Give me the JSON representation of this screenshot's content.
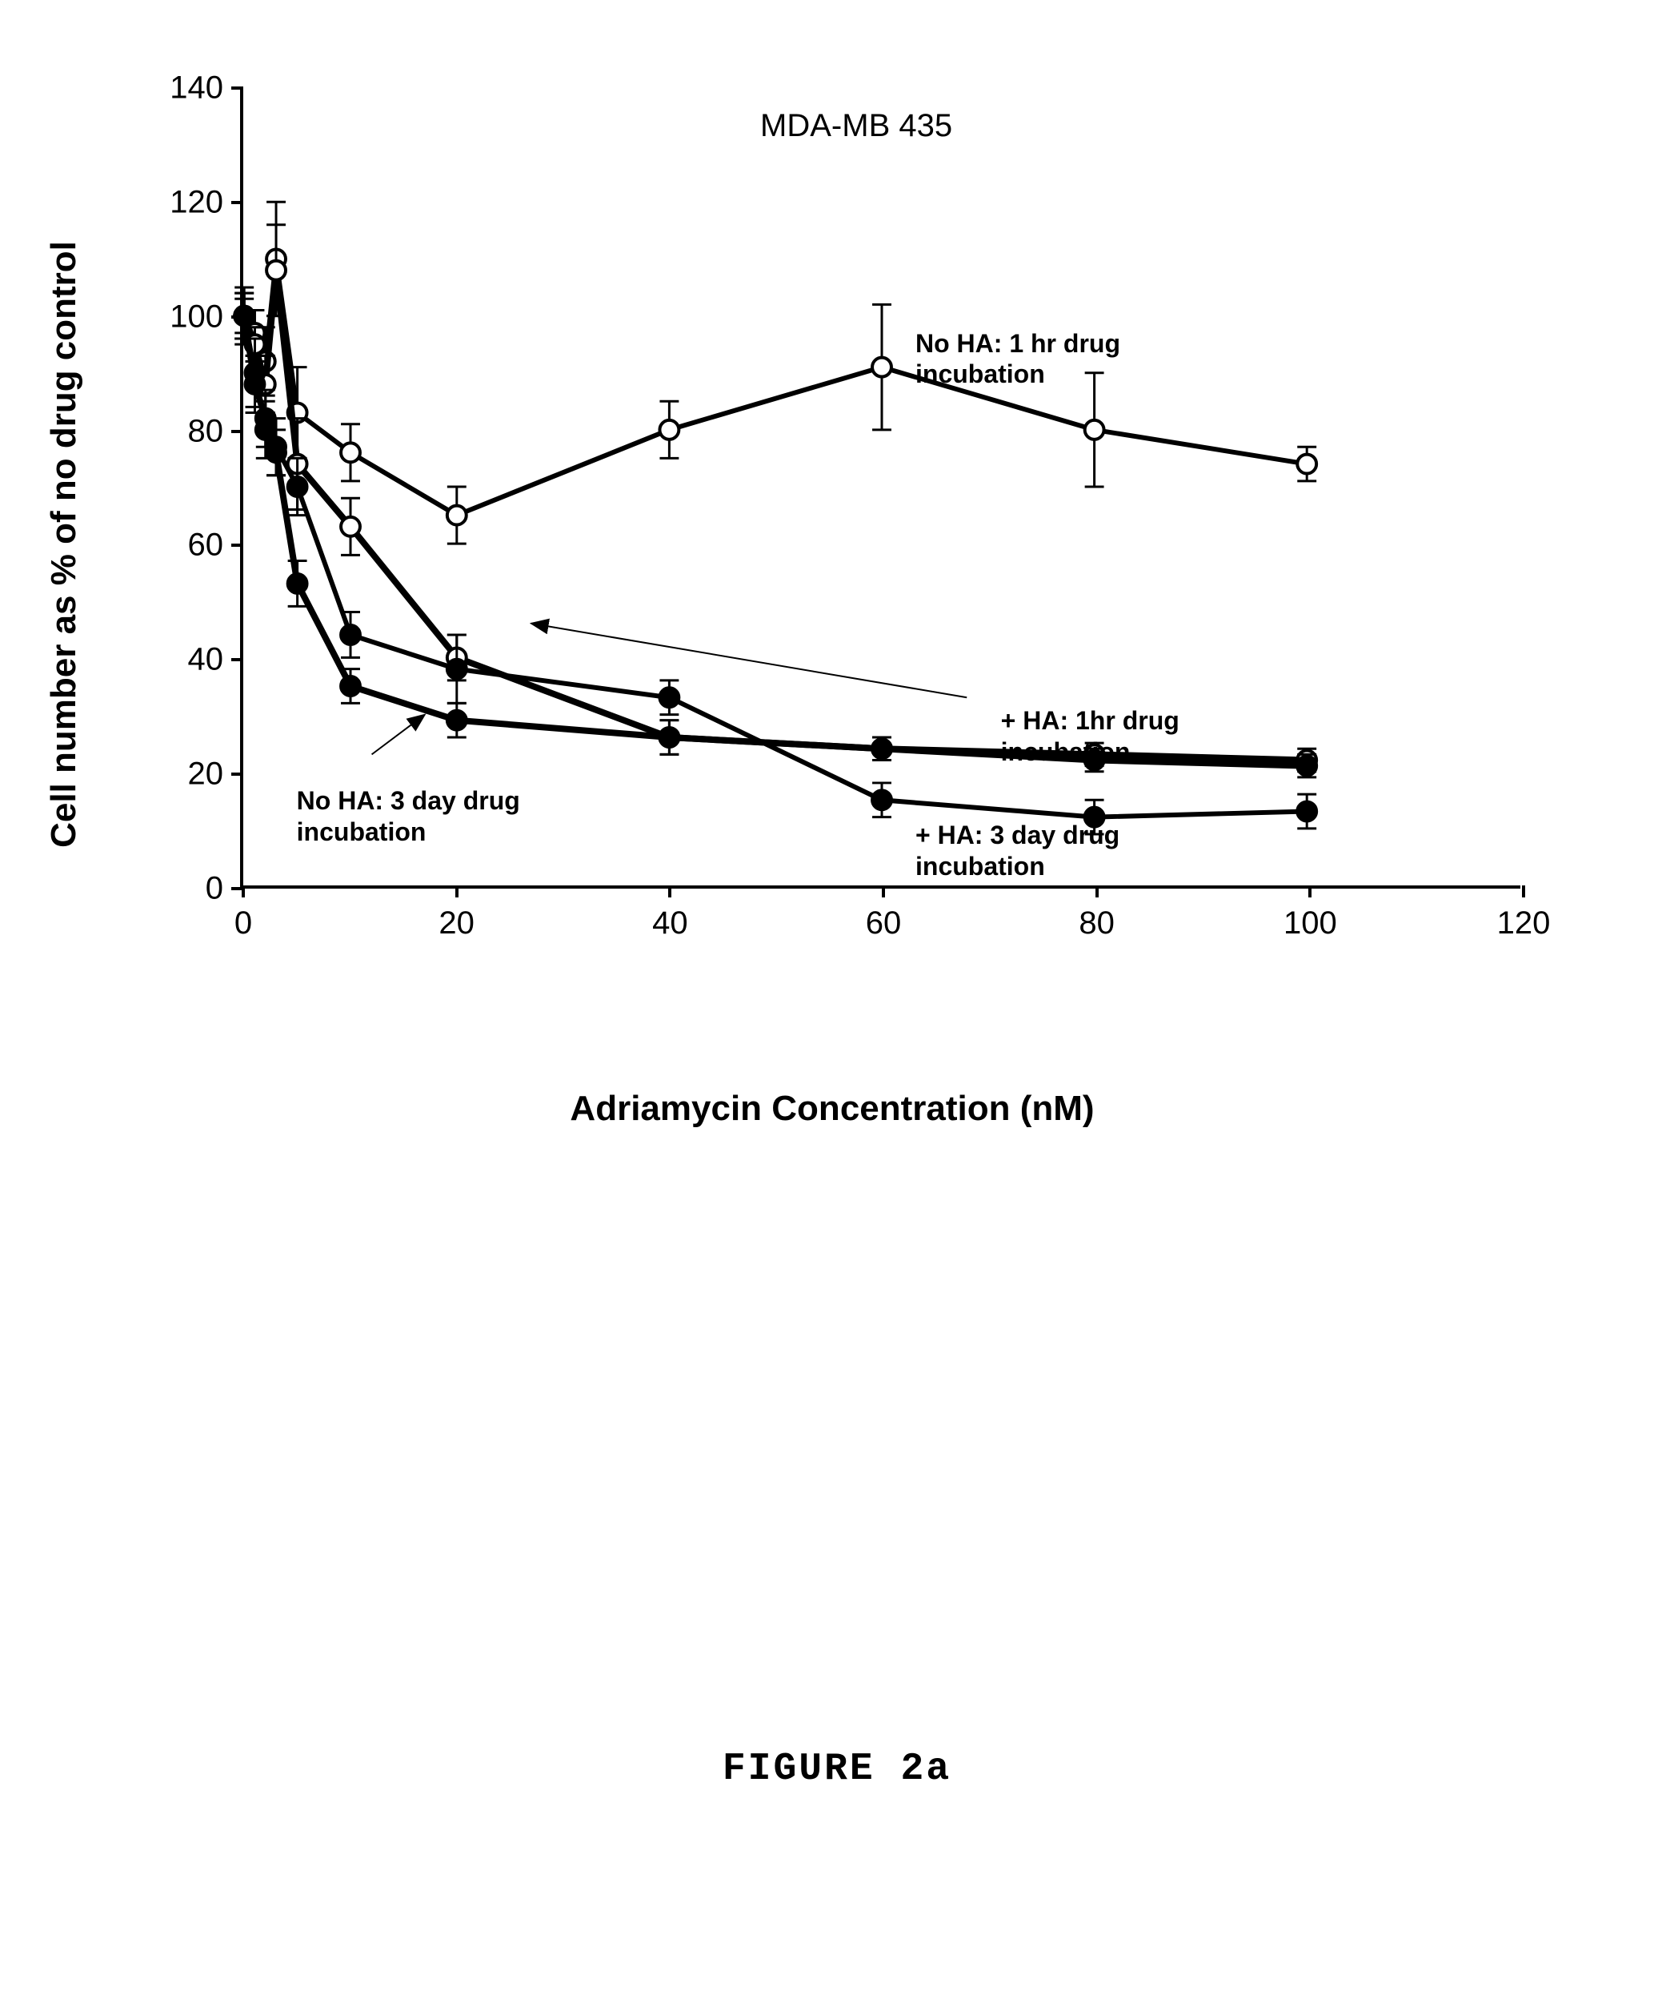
{
  "chart": {
    "type": "line",
    "title": "MDA-MB 435",
    "title_fontsize": 40,
    "xlabel": "Adriamycin Concentration (nM)",
    "ylabel": "Cell number as % of no drug control",
    "label_fontsize": 44,
    "xlim": [
      0,
      120
    ],
    "ylim": [
      0,
      140
    ],
    "x_ticks": [
      0,
      20,
      40,
      60,
      80,
      100,
      120
    ],
    "y_ticks": [
      0,
      20,
      40,
      60,
      80,
      100,
      120,
      140
    ],
    "tick_fontsize": 40,
    "background_color": "#ffffff",
    "axis_color": "#000000",
    "line_width": 6,
    "marker_size": 12,
    "error_cap_width": 12,
    "series": [
      {
        "name": "No HA: 1 hr drug incubation",
        "label": "No HA: 1 hr drug\nincubation",
        "label_pos": {
          "x": 63,
          "y": 98
        },
        "color": "#000000",
        "marker": "open-circle",
        "line_style": "solid",
        "points": [
          {
            "x": 0,
            "y": 100,
            "err": 5
          },
          {
            "x": 1,
            "y": 97,
            "err": 4
          },
          {
            "x": 2,
            "y": 92,
            "err": 6
          },
          {
            "x": 3,
            "y": 110,
            "err": 10
          },
          {
            "x": 5,
            "y": 83,
            "err": 8
          },
          {
            "x": 10,
            "y": 76,
            "err": 5
          },
          {
            "x": 20,
            "y": 65,
            "err": 5
          },
          {
            "x": 40,
            "y": 80,
            "err": 5
          },
          {
            "x": 60,
            "y": 91,
            "err": 11
          },
          {
            "x": 80,
            "y": 80,
            "err": 10
          },
          {
            "x": 100,
            "y": 74,
            "err": 3
          }
        ]
      },
      {
        "name": "+ HA: 1hr drug incubation",
        "label": "+ HA: 1hr drug\nincubation",
        "label_pos": {
          "x": 71,
          "y": 32
        },
        "arrow_from": {
          "x": 68,
          "y": 33
        },
        "arrow_to": {
          "x": 27,
          "y": 46
        },
        "color": "#000000",
        "marker": "open-circle",
        "line_style": "solid",
        "line_width": 8,
        "points": [
          {
            "x": 0,
            "y": 100,
            "err": 4
          },
          {
            "x": 1,
            "y": 95,
            "err": 3
          },
          {
            "x": 2,
            "y": 88,
            "err": 5
          },
          {
            "x": 3,
            "y": 108,
            "err": 8
          },
          {
            "x": 5,
            "y": 74,
            "err": 8
          },
          {
            "x": 10,
            "y": 63,
            "err": 5
          },
          {
            "x": 20,
            "y": 40,
            "err": 4
          },
          {
            "x": 40,
            "y": 26,
            "err": 3
          },
          {
            "x": 60,
            "y": 24,
            "err": 2
          },
          {
            "x": 80,
            "y": 23,
            "err": 2
          },
          {
            "x": 100,
            "y": 22,
            "err": 2
          }
        ]
      },
      {
        "name": "No HA: 3 day drug incubation",
        "label": "No HA: 3 day drug\nincubation",
        "label_pos": {
          "x": 5,
          "y": 18
        },
        "arrow_from": {
          "x": 12,
          "y": 23
        },
        "arrow_to": {
          "x": 17,
          "y": 30
        },
        "color": "#000000",
        "marker": "filled-circle",
        "line_style": "solid",
        "points": [
          {
            "x": 0,
            "y": 100,
            "err": 4
          },
          {
            "x": 1,
            "y": 90,
            "err": 6
          },
          {
            "x": 2,
            "y": 80,
            "err": 5
          },
          {
            "x": 3,
            "y": 77,
            "err": 5
          },
          {
            "x": 5,
            "y": 70,
            "err": 5
          },
          {
            "x": 10,
            "y": 44,
            "err": 4
          },
          {
            "x": 20,
            "y": 38,
            "err": 6
          },
          {
            "x": 40,
            "y": 33,
            "err": 3
          },
          {
            "x": 60,
            "y": 15,
            "err": 3
          },
          {
            "x": 80,
            "y": 12,
            "err": 3
          },
          {
            "x": 100,
            "y": 13,
            "err": 3
          }
        ]
      },
      {
        "name": "+ HA: 3 day drug incubation",
        "label": "+ HA: 3 day drug\nincubation",
        "label_pos": {
          "x": 63,
          "y": 12
        },
        "color": "#000000",
        "marker": "filled-circle",
        "line_style": "solid",
        "line_width": 8,
        "points": [
          {
            "x": 0,
            "y": 100,
            "err": 3
          },
          {
            "x": 1,
            "y": 88,
            "err": 5
          },
          {
            "x": 2,
            "y": 82,
            "err": 5
          },
          {
            "x": 3,
            "y": 76,
            "err": 4
          },
          {
            "x": 5,
            "y": 53,
            "err": 4
          },
          {
            "x": 10,
            "y": 35,
            "err": 3
          },
          {
            "x": 20,
            "y": 29,
            "err": 3
          },
          {
            "x": 40,
            "y": 26,
            "err": 3
          },
          {
            "x": 60,
            "y": 24,
            "err": 2
          },
          {
            "x": 80,
            "y": 22,
            "err": 2
          },
          {
            "x": 100,
            "y": 21,
            "err": 2
          }
        ]
      }
    ]
  },
  "figure_caption": "FIGURE  2a"
}
